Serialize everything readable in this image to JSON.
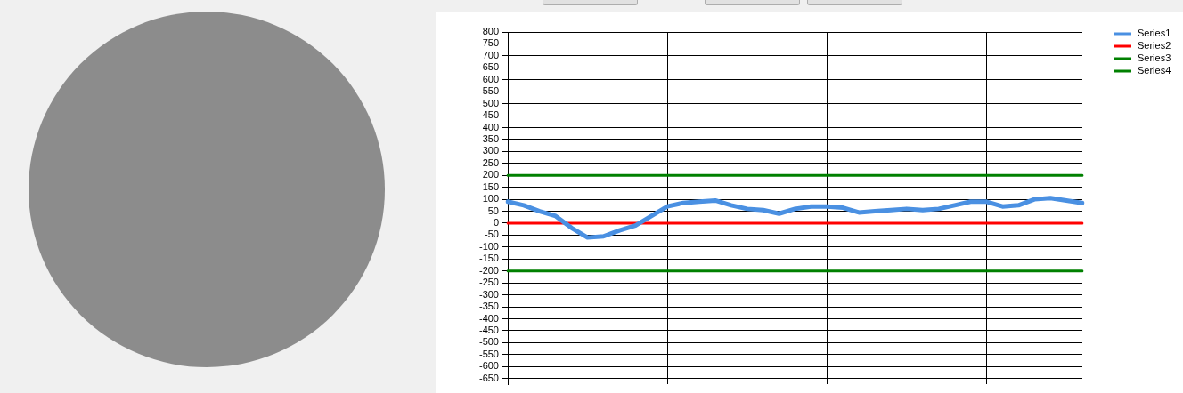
{
  "chart_data": {
    "type": "line",
    "categories": [
      null,
      null,
      null,
      null,
      null,
      null,
      null,
      null,
      null,
      null,
      null,
      null,
      null,
      null,
      null,
      null,
      null,
      null,
      null,
      null,
      null,
      null,
      null,
      null,
      null,
      null,
      null,
      null,
      null,
      null,
      null,
      null,
      null,
      null,
      null,
      null,
      null
    ],
    "series": [
      {
        "name": "Series1",
        "color": "#4a90e2",
        "values": [
          90,
          75,
          50,
          30,
          -20,
          -60,
          -55,
          -30,
          -10,
          30,
          70,
          85,
          90,
          95,
          75,
          60,
          55,
          40,
          60,
          70,
          70,
          65,
          45,
          50,
          55,
          60,
          55,
          60,
          75,
          90,
          90,
          70,
          75,
          100,
          105,
          95,
          85
        ]
      },
      {
        "name": "Series2",
        "color": "#ff0000",
        "values": [
          0,
          0,
          0,
          0,
          0,
          0,
          0,
          0,
          0,
          0,
          0,
          0,
          0,
          0,
          0,
          0,
          0,
          0,
          0,
          0,
          0,
          0,
          0,
          0,
          0,
          0,
          0,
          0,
          0,
          0,
          0,
          0,
          0,
          0,
          0,
          0,
          0
        ]
      },
      {
        "name": "Series3",
        "color": "#008000",
        "values": [
          200,
          200,
          200,
          200,
          200,
          200,
          200,
          200,
          200,
          200,
          200,
          200,
          200,
          200,
          200,
          200,
          200,
          200,
          200,
          200,
          200,
          200,
          200,
          200,
          200,
          200,
          200,
          200,
          200,
          200,
          200,
          200,
          200,
          200,
          200,
          200,
          200
        ]
      },
      {
        "name": "Series4",
        "color": "#008000",
        "values": [
          -200,
          -200,
          -200,
          -200,
          -200,
          -200,
          -200,
          -200,
          -200,
          -200,
          -200,
          -200,
          -200,
          -200,
          -200,
          -200,
          -200,
          -200,
          -200,
          -200,
          -200,
          -200,
          -200,
          -200,
          -200,
          -200,
          -200,
          -200,
          -200,
          -200,
          -200,
          -200,
          -200,
          -200,
          -200,
          -200,
          -200
        ]
      }
    ],
    "ylim": [
      -675,
      800
    ],
    "yticks": [
      -650,
      -600,
      -550,
      -500,
      -450,
      -400,
      -350,
      -300,
      -250,
      -200,
      -150,
      -100,
      -50,
      0,
      50,
      100,
      150,
      200,
      250,
      300,
      350,
      400,
      450,
      500,
      550,
      600,
      650,
      700,
      750,
      800
    ],
    "grid": true,
    "legend": "top right",
    "marker": "none",
    "line_style": "solid"
  }
}
